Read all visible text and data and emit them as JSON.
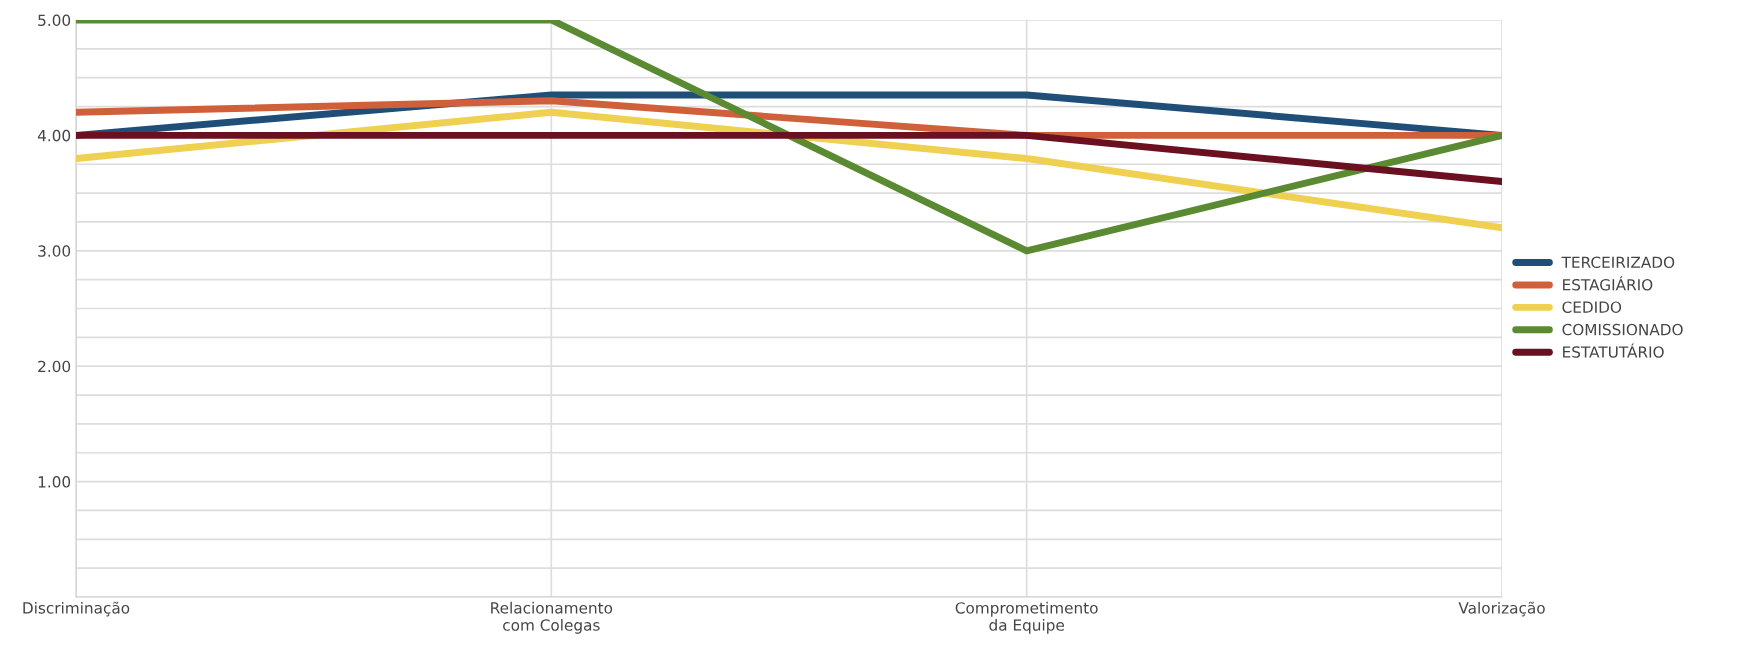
{
  "chart_data": {
    "type": "line",
    "categories": [
      "Discriminação",
      "Relacionamento\ncom Colegas",
      "Comprometimento\nda Equipe",
      "Valorização"
    ],
    "series": [
      {
        "name": "TERCEIRIZADO",
        "color": "#1f4e79",
        "values": [
          4.0,
          4.35,
          4.35,
          4.0
        ]
      },
      {
        "name": "ESTAGIÁRIO",
        "color": "#d0603a",
        "values": [
          4.2,
          4.3,
          4.0,
          4.0
        ]
      },
      {
        "name": "CEDIDO",
        "color": "#f0d050",
        "values": [
          3.8,
          4.2,
          3.8,
          3.2
        ]
      },
      {
        "name": "COMISSIONADO",
        "color": "#5a8a32",
        "values": [
          5.0,
          5.0,
          3.0,
          4.0
        ]
      },
      {
        "name": "ESTATUTÁRIO",
        "color": "#6b1020",
        "values": [
          4.0,
          4.0,
          4.0,
          3.6
        ]
      }
    ],
    "ylim": [
      0,
      5
    ],
    "yticks": [
      {
        "value": 0,
        "label": null
      },
      {
        "value": 0.25,
        "label": null
      },
      {
        "value": 0.5,
        "label": null
      },
      {
        "value": 0.75,
        "label": null
      },
      {
        "value": 1,
        "label": "1.00"
      },
      {
        "value": 1.25,
        "label": null
      },
      {
        "value": 1.5,
        "label": null
      },
      {
        "value": 1.75,
        "label": null
      },
      {
        "value": 2,
        "label": "2.00"
      },
      {
        "value": 2.25,
        "label": null
      },
      {
        "value": 2.5,
        "label": null
      },
      {
        "value": 2.75,
        "label": null
      },
      {
        "value": 3,
        "label": "3.00"
      },
      {
        "value": 3.25,
        "label": null
      },
      {
        "value": 3.5,
        "label": null
      },
      {
        "value": 3.75,
        "label": null
      },
      {
        "value": 4,
        "label": "4.00"
      },
      {
        "value": 4.25,
        "label": null
      },
      {
        "value": 4.5,
        "label": null
      },
      {
        "value": 4.75,
        "label": null
      },
      {
        "value": 5,
        "label": "5.00"
      }
    ],
    "grid": true,
    "legend": "right",
    "marker": "none",
    "line_style": "solid"
  }
}
